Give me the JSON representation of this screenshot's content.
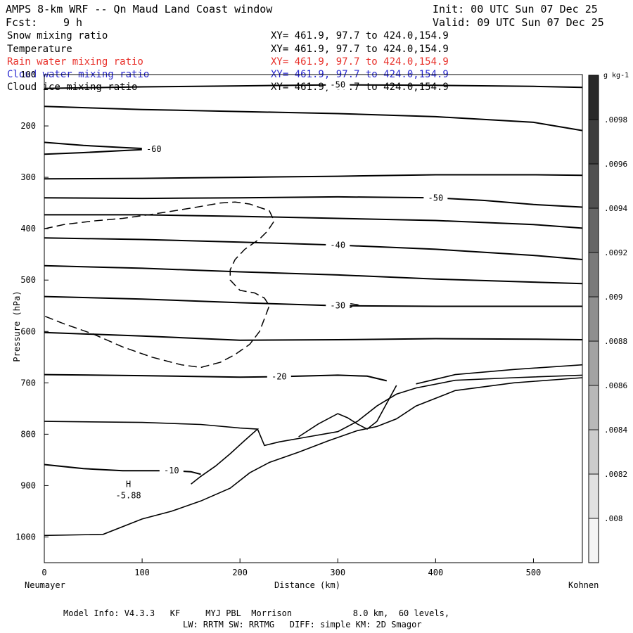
{
  "header": {
    "title": "AMPS 8-km WRF -- Qn Maud Land Coast window",
    "init": "Init: 00 UTC Sun 07 Dec 25",
    "forecast_label": "Fcst:",
    "forecast_hours": "9 h",
    "valid": "Valid: 09 UTC Sun 07 Dec 25"
  },
  "variables": [
    {
      "name": "Snow mixing ratio",
      "xy": "XY= 461.9, 97.7 to 424.0,154.9",
      "color": "#000000"
    },
    {
      "name": "Temperature",
      "xy": "XY= 461.9, 97.7 to 424.0,154.9",
      "color": "#000000"
    },
    {
      "name": "Rain water mixing ratio",
      "xy": "XY= 461.9, 97.7 to 424.0,154.9",
      "color": "#e8302a"
    },
    {
      "name": "Cloud water mixing ratio",
      "xy": "XY= 461.9, 97.7 to 424.0,154.9",
      "color": "#2a2ad0"
    },
    {
      "name": "Cloud ice mixing ratio",
      "xy": "XY= 461.9, 97.7 to 424.0,154.9",
      "color": "#000000"
    }
  ],
  "footer": {
    "line1": "Model Info: V4.3.3   KF     MYJ PBL  Morrison            8.0 km,  60 levels,",
    "line2": "LW: RRTM SW: RRTMG   DIFF: simple KM: 2D Smagor"
  },
  "chart_data": {
    "type": "line",
    "xlabel": "Distance (km)",
    "ylabel": "Pressure (hPa)",
    "xlim": [
      0,
      550
    ],
    "ylim": [
      1050,
      100
    ],
    "x_ticks": [
      0,
      100,
      200,
      300,
      400,
      500
    ],
    "y_ticks": [
      100,
      200,
      300,
      400,
      500,
      600,
      700,
      800,
      900,
      1000
    ],
    "x_start_label": "Neumayer",
    "x_end_label": "Kohnen",
    "max_marker": {
      "label": "H",
      "value": "-5.88",
      "x": 68,
      "p": 930
    },
    "colorbar": {
      "unit": "g kg-1",
      "labels": [
        ".008",
        ".0082",
        ".0084",
        ".0086",
        ".0088",
        ".009",
        ".0092",
        ".0094",
        ".0096",
        ".0098"
      ]
    },
    "isotherms": [
      {
        "label": "-50",
        "points": [
          [
            0,
            127
          ],
          [
            100,
            124
          ],
          [
            200,
            122
          ],
          [
            300,
            120
          ],
          [
            400,
            121
          ],
          [
            500,
            123
          ],
          [
            550,
            125
          ]
        ]
      },
      {
        "label": "",
        "points": [
          [
            0,
            162
          ],
          [
            100,
            168
          ],
          [
            200,
            172
          ],
          [
            300,
            176
          ],
          [
            400,
            182
          ],
          [
            500,
            193
          ],
          [
            550,
            209
          ]
        ]
      },
      {
        "label": "-60",
        "points": [
          [
            0,
            255
          ],
          [
            40,
            252
          ],
          [
            80,
            248
          ],
          [
            112,
            245
          ],
          [
            80,
            242
          ],
          [
            40,
            238
          ],
          [
            0,
            232
          ]
        ]
      },
      {
        "label": "",
        "points": [
          [
            0,
            303
          ],
          [
            100,
            302
          ],
          [
            200,
            300
          ],
          [
            300,
            298
          ],
          [
            400,
            295
          ],
          [
            500,
            295
          ],
          [
            550,
            296
          ]
        ]
      },
      {
        "label": "-50",
        "points": [
          [
            0,
            340
          ],
          [
            100,
            341
          ],
          [
            200,
            340
          ],
          [
            300,
            338
          ],
          [
            400,
            340
          ],
          [
            450,
            345
          ],
          [
            500,
            353
          ],
          [
            550,
            358
          ]
        ]
      },
      {
        "label": "",
        "points": [
          [
            0,
            373
          ],
          [
            100,
            373
          ],
          [
            200,
            376
          ],
          [
            300,
            380
          ],
          [
            400,
            384
          ],
          [
            500,
            392
          ],
          [
            550,
            399
          ]
        ]
      },
      {
        "label": "-40",
        "points": [
          [
            0,
            418
          ],
          [
            100,
            421
          ],
          [
            200,
            426
          ],
          [
            300,
            432
          ],
          [
            400,
            440
          ],
          [
            500,
            452
          ],
          [
            550,
            460
          ]
        ]
      },
      {
        "label": "",
        "points": [
          [
            0,
            472
          ],
          [
            100,
            477
          ],
          [
            200,
            484
          ],
          [
            300,
            490
          ],
          [
            400,
            498
          ],
          [
            500,
            504
          ],
          [
            550,
            507
          ]
        ]
      },
      {
        "label": "-30",
        "points": [
          [
            0,
            532
          ],
          [
            100,
            537
          ],
          [
            200,
            544
          ],
          [
            300,
            550
          ],
          [
            400,
            551
          ],
          [
            500,
            551
          ],
          [
            550,
            551
          ]
        ]
      },
      {
        "label": "",
        "points": [
          [
            0,
            602
          ],
          [
            100,
            609
          ],
          [
            200,
            617
          ],
          [
            300,
            616
          ],
          [
            400,
            614
          ],
          [
            500,
            615
          ],
          [
            550,
            616
          ]
        ]
      },
      {
        "label": "-20",
        "points": [
          [
            0,
            684
          ],
          [
            100,
            686
          ],
          [
            200,
            689
          ],
          [
            240,
            688
          ],
          [
            300,
            685
          ],
          [
            330,
            687
          ],
          [
            350,
            696
          ]
        ]
      },
      {
        "label": "-10",
        "points": [
          [
            0,
            859
          ],
          [
            40,
            867
          ],
          [
            80,
            871
          ],
          [
            130,
            871
          ],
          [
            150,
            873
          ],
          [
            160,
            878
          ]
        ]
      }
    ],
    "terrain": [
      [
        [
          0,
          997
        ],
        [
          60,
          995
        ],
        [
          100,
          965
        ],
        [
          130,
          950
        ],
        [
          160,
          930
        ],
        [
          190,
          905
        ],
        [
          210,
          875
        ],
        [
          230,
          855
        ],
        [
          260,
          835
        ],
        [
          290,
          813
        ],
        [
          320,
          793
        ],
        [
          340,
          785
        ],
        [
          360,
          770
        ],
        [
          380,
          745
        ],
        [
          420,
          715
        ],
        [
          480,
          700
        ],
        [
          550,
          690
        ]
      ],
      [
        [
          0,
          775
        ],
        [
          100,
          777
        ],
        [
          160,
          781
        ],
        [
          200,
          788
        ],
        [
          218,
          790
        ],
        [
          205,
          812
        ],
        [
          190,
          838
        ],
        [
          175,
          862
        ],
        [
          160,
          882
        ],
        [
          150,
          897
        ]
      ],
      [
        [
          218,
          790
        ],
        [
          225,
          822
        ],
        [
          240,
          815
        ],
        [
          270,
          805
        ],
        [
          300,
          795
        ],
        [
          320,
          775
        ],
        [
          340,
          745
        ],
        [
          360,
          722
        ],
        [
          380,
          710
        ],
        [
          420,
          695
        ],
        [
          480,
          690
        ],
        [
          550,
          685
        ]
      ],
      [
        [
          260,
          805
        ],
        [
          280,
          780
        ],
        [
          300,
          760
        ],
        [
          310,
          768
        ],
        [
          320,
          780
        ],
        [
          330,
          790
        ],
        [
          340,
          775
        ],
        [
          350,
          740
        ],
        [
          360,
          705
        ]
      ],
      [
        [
          380,
          702
        ],
        [
          420,
          684
        ],
        [
          480,
          674
        ],
        [
          550,
          665
        ]
      ]
    ],
    "cloud_ice_contour": [
      [
        [
          0,
          400
        ],
        [
          20,
          392
        ],
        [
          50,
          385
        ],
        [
          80,
          380
        ],
        [
          110,
          372
        ],
        [
          150,
          360
        ],
        [
          180,
          350
        ],
        [
          195,
          348
        ],
        [
          210,
          352
        ],
        [
          230,
          365
        ],
        [
          235,
          385
        ],
        [
          228,
          405
        ],
        [
          220,
          420
        ],
        [
          205,
          440
        ],
        [
          195,
          460
        ],
        [
          190,
          480
        ],
        [
          190,
          500
        ],
        [
          195,
          510
        ],
        [
          200,
          520
        ],
        [
          215,
          525
        ],
        [
          225,
          535
        ],
        [
          230,
          550
        ],
        [
          225,
          575
        ],
        [
          220,
          600
        ],
        [
          210,
          625
        ],
        [
          195,
          645
        ],
        [
          180,
          660
        ],
        [
          160,
          670
        ],
        [
          140,
          665
        ],
        [
          110,
          650
        ],
        [
          80,
          630
        ],
        [
          50,
          605
        ],
        [
          20,
          585
        ],
        [
          0,
          570
        ]
      ],
      [
        [
          300,
          543
        ],
        [
          310,
          545
        ],
        [
          320,
          548
        ],
        [
          310,
          555
        ],
        [
          305,
          560
        ],
        [
          300,
          552
        ],
        [
          300,
          543
        ]
      ]
    ]
  }
}
